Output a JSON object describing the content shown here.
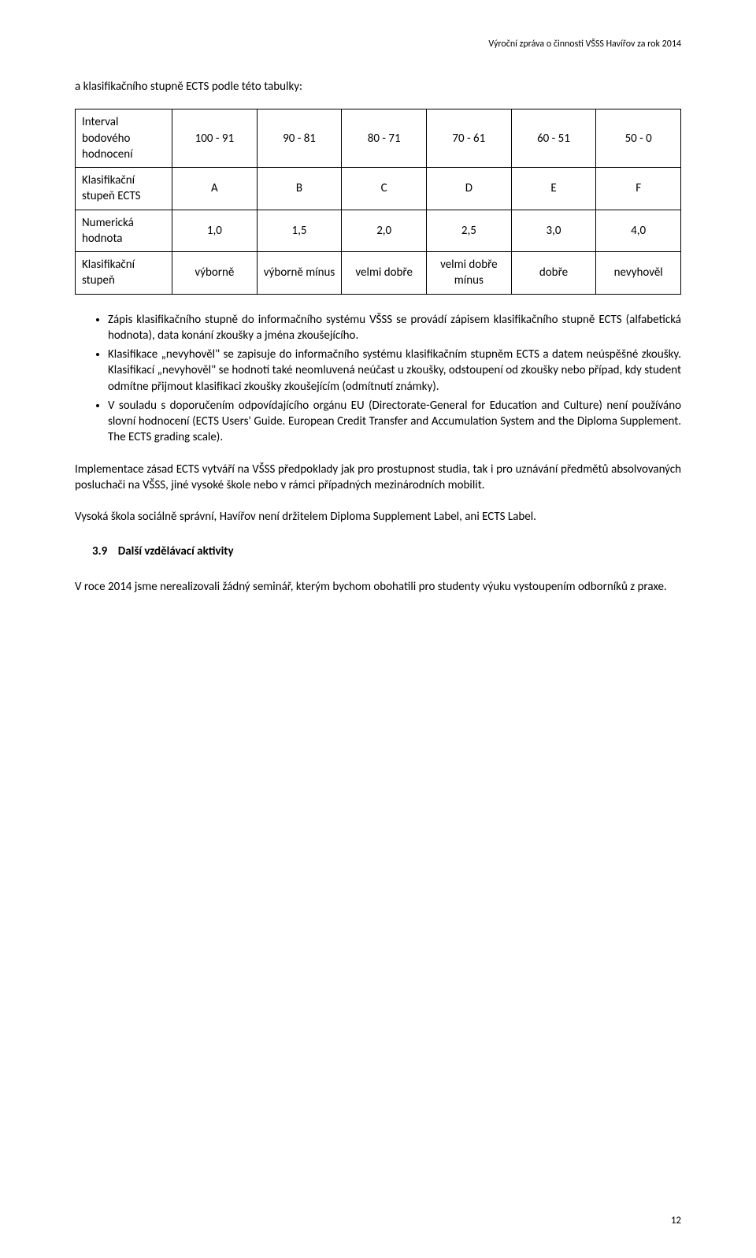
{
  "header": {
    "text": "Výroční zpráva o činnosti VŠSS Havířov za rok 2014"
  },
  "intro_line": "a klasifikačního stupně ECTS  podle této tabulky:",
  "table": {
    "columns": [
      "c0",
      "c1",
      "c2",
      "c3",
      "c4",
      "c5"
    ],
    "row_label_width": "16%",
    "col_width": "14%",
    "border_color": "#000000",
    "background": "#ffffff",
    "fontsize": 15,
    "rows": [
      {
        "label": "Interval bodového hodnocení",
        "cells": [
          "100 - 91",
          "90 - 81",
          "80 - 71",
          "70 - 61",
          "60 - 51",
          "50 - 0"
        ]
      },
      {
        "label": "Klasifikační stupeň ECTS",
        "cells": [
          "A",
          "B",
          "C",
          "D",
          "E",
          "F"
        ]
      },
      {
        "label": "Numerická hodnota",
        "cells": [
          "1,0",
          "1,5",
          "2,0",
          "2,5",
          "3,0",
          "4,0"
        ]
      },
      {
        "label": "Klasifikační stupeň",
        "cells": [
          "výborně",
          "výborně mínus",
          "velmi dobře",
          "velmi dobře mínus",
          "dobře",
          "nevyhověl"
        ]
      }
    ]
  },
  "bullets": [
    "Zápis klasifikačního stupně do informačního systému VŠSS se provádí zápisem klasifikačního stupně ECTS (alfabetická hodnota), data konání zkoušky a jména zkoušejícího.",
    "Klasifikace „nevyhověl\" se zapisuje do informačního systému klasifikačním stupněm ECTS a datem neúspěšné zkoušky. Klasifikací „nevyhověl\" se hodnotí také neomluvená neúčast u zkoušky, odstoupení od zkoušky nebo případ, kdy student odmítne přijmout klasifikaci zkoušky zkoušejícím (odmítnutí známky).",
    "V souladu s doporučením odpovídajícího orgánu EU (Directorate-General for Education and Culture) není používáno slovní hodnocení (ECTS Users' Guide. European Credit Transfer and Accumulation System and the Diploma Supplement. The ECTS grading scale)."
  ],
  "paragraphs": {
    "p1": "Implementace zásad ECTS vytváří na VŠSS předpoklady jak pro prostupnost studia, tak i pro uznávání předmětů absolvovaných posluchači na VŠSS, jiné vysoké škole nebo v rámci případných mezinárodních mobilit.",
    "p2": "Vysoká škola sociálně správní, Havířov není držitelem Diploma Supplement Label, ani ECTS Label."
  },
  "section": {
    "number": "3.9",
    "title": "Další vzdělávací aktivity",
    "body": "V roce 2014 jsme nerealizovali žádný seminář, kterým bychom obohatili pro studenty výuku vystoupením odborníků z praxe."
  },
  "page_number": "12",
  "styles": {
    "body_font_family": "Calibri, 'Segoe UI', Arial, sans-serif",
    "body_fontsize": 15,
    "header_fontsize": 12,
    "page_number_fontsize": 13,
    "text_color": "#000000",
    "background_color": "#ffffff"
  }
}
